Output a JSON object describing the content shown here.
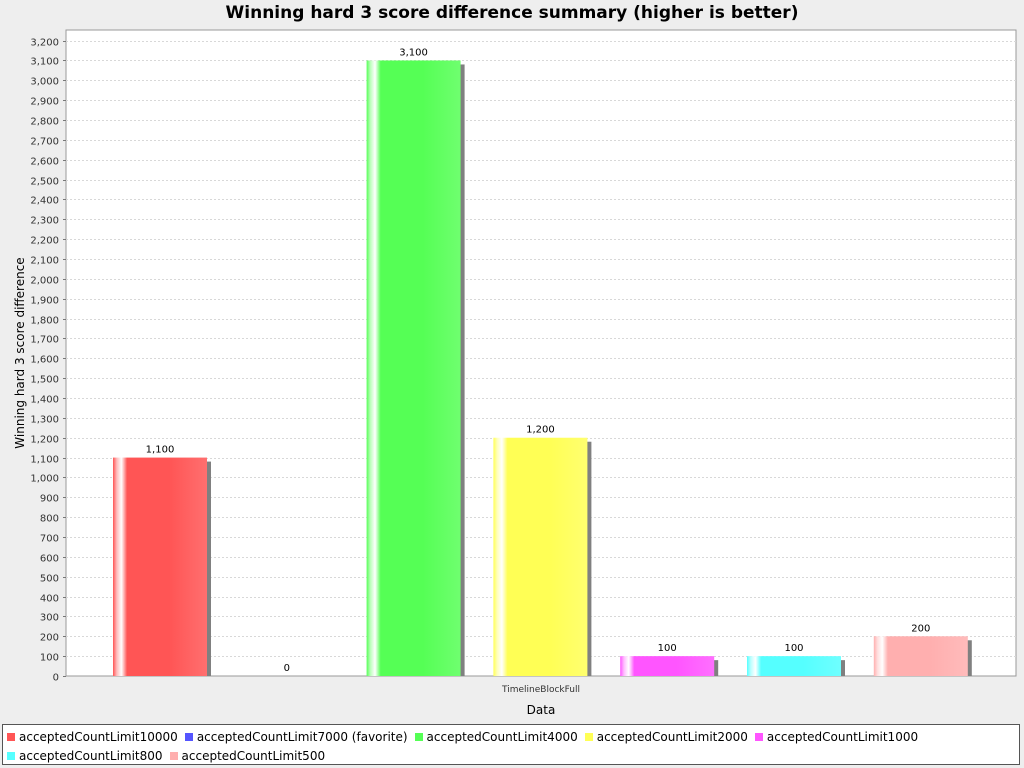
{
  "chart_data": {
    "type": "bar",
    "title": "Winning hard 3 score difference summary (higher is better)",
    "xlabel": "Data",
    "ylabel": "Winning hard 3 score difference",
    "categories": [
      "TimelineBlockFull"
    ],
    "ylim": [
      0,
      3250
    ],
    "y_tick_step": 100,
    "grid": true,
    "legend_position": "bottom",
    "series": [
      {
        "name": "acceptedCountLimit10000",
        "values": [
          1100
        ],
        "value_label": "1,100",
        "color": "#ff5555"
      },
      {
        "name": "acceptedCountLimit7000 (favorite)",
        "values": [
          0
        ],
        "value_label": "0",
        "color": "#5555ff"
      },
      {
        "name": "acceptedCountLimit4000",
        "values": [
          3100
        ],
        "value_label": "3,100",
        "color": "#55ff55"
      },
      {
        "name": "acceptedCountLimit2000",
        "values": [
          1200
        ],
        "value_label": "1,200",
        "color": "#ffff55"
      },
      {
        "name": "acceptedCountLimit1000",
        "values": [
          100
        ],
        "value_label": "100",
        "color": "#ff55ff"
      },
      {
        "name": "acceptedCountLimit800",
        "values": [
          100
        ],
        "value_label": "100",
        "color": "#55ffff"
      },
      {
        "name": "acceptedCountLimit500",
        "values": [
          200
        ],
        "value_label": "200",
        "color": "#ffafaf"
      }
    ]
  }
}
